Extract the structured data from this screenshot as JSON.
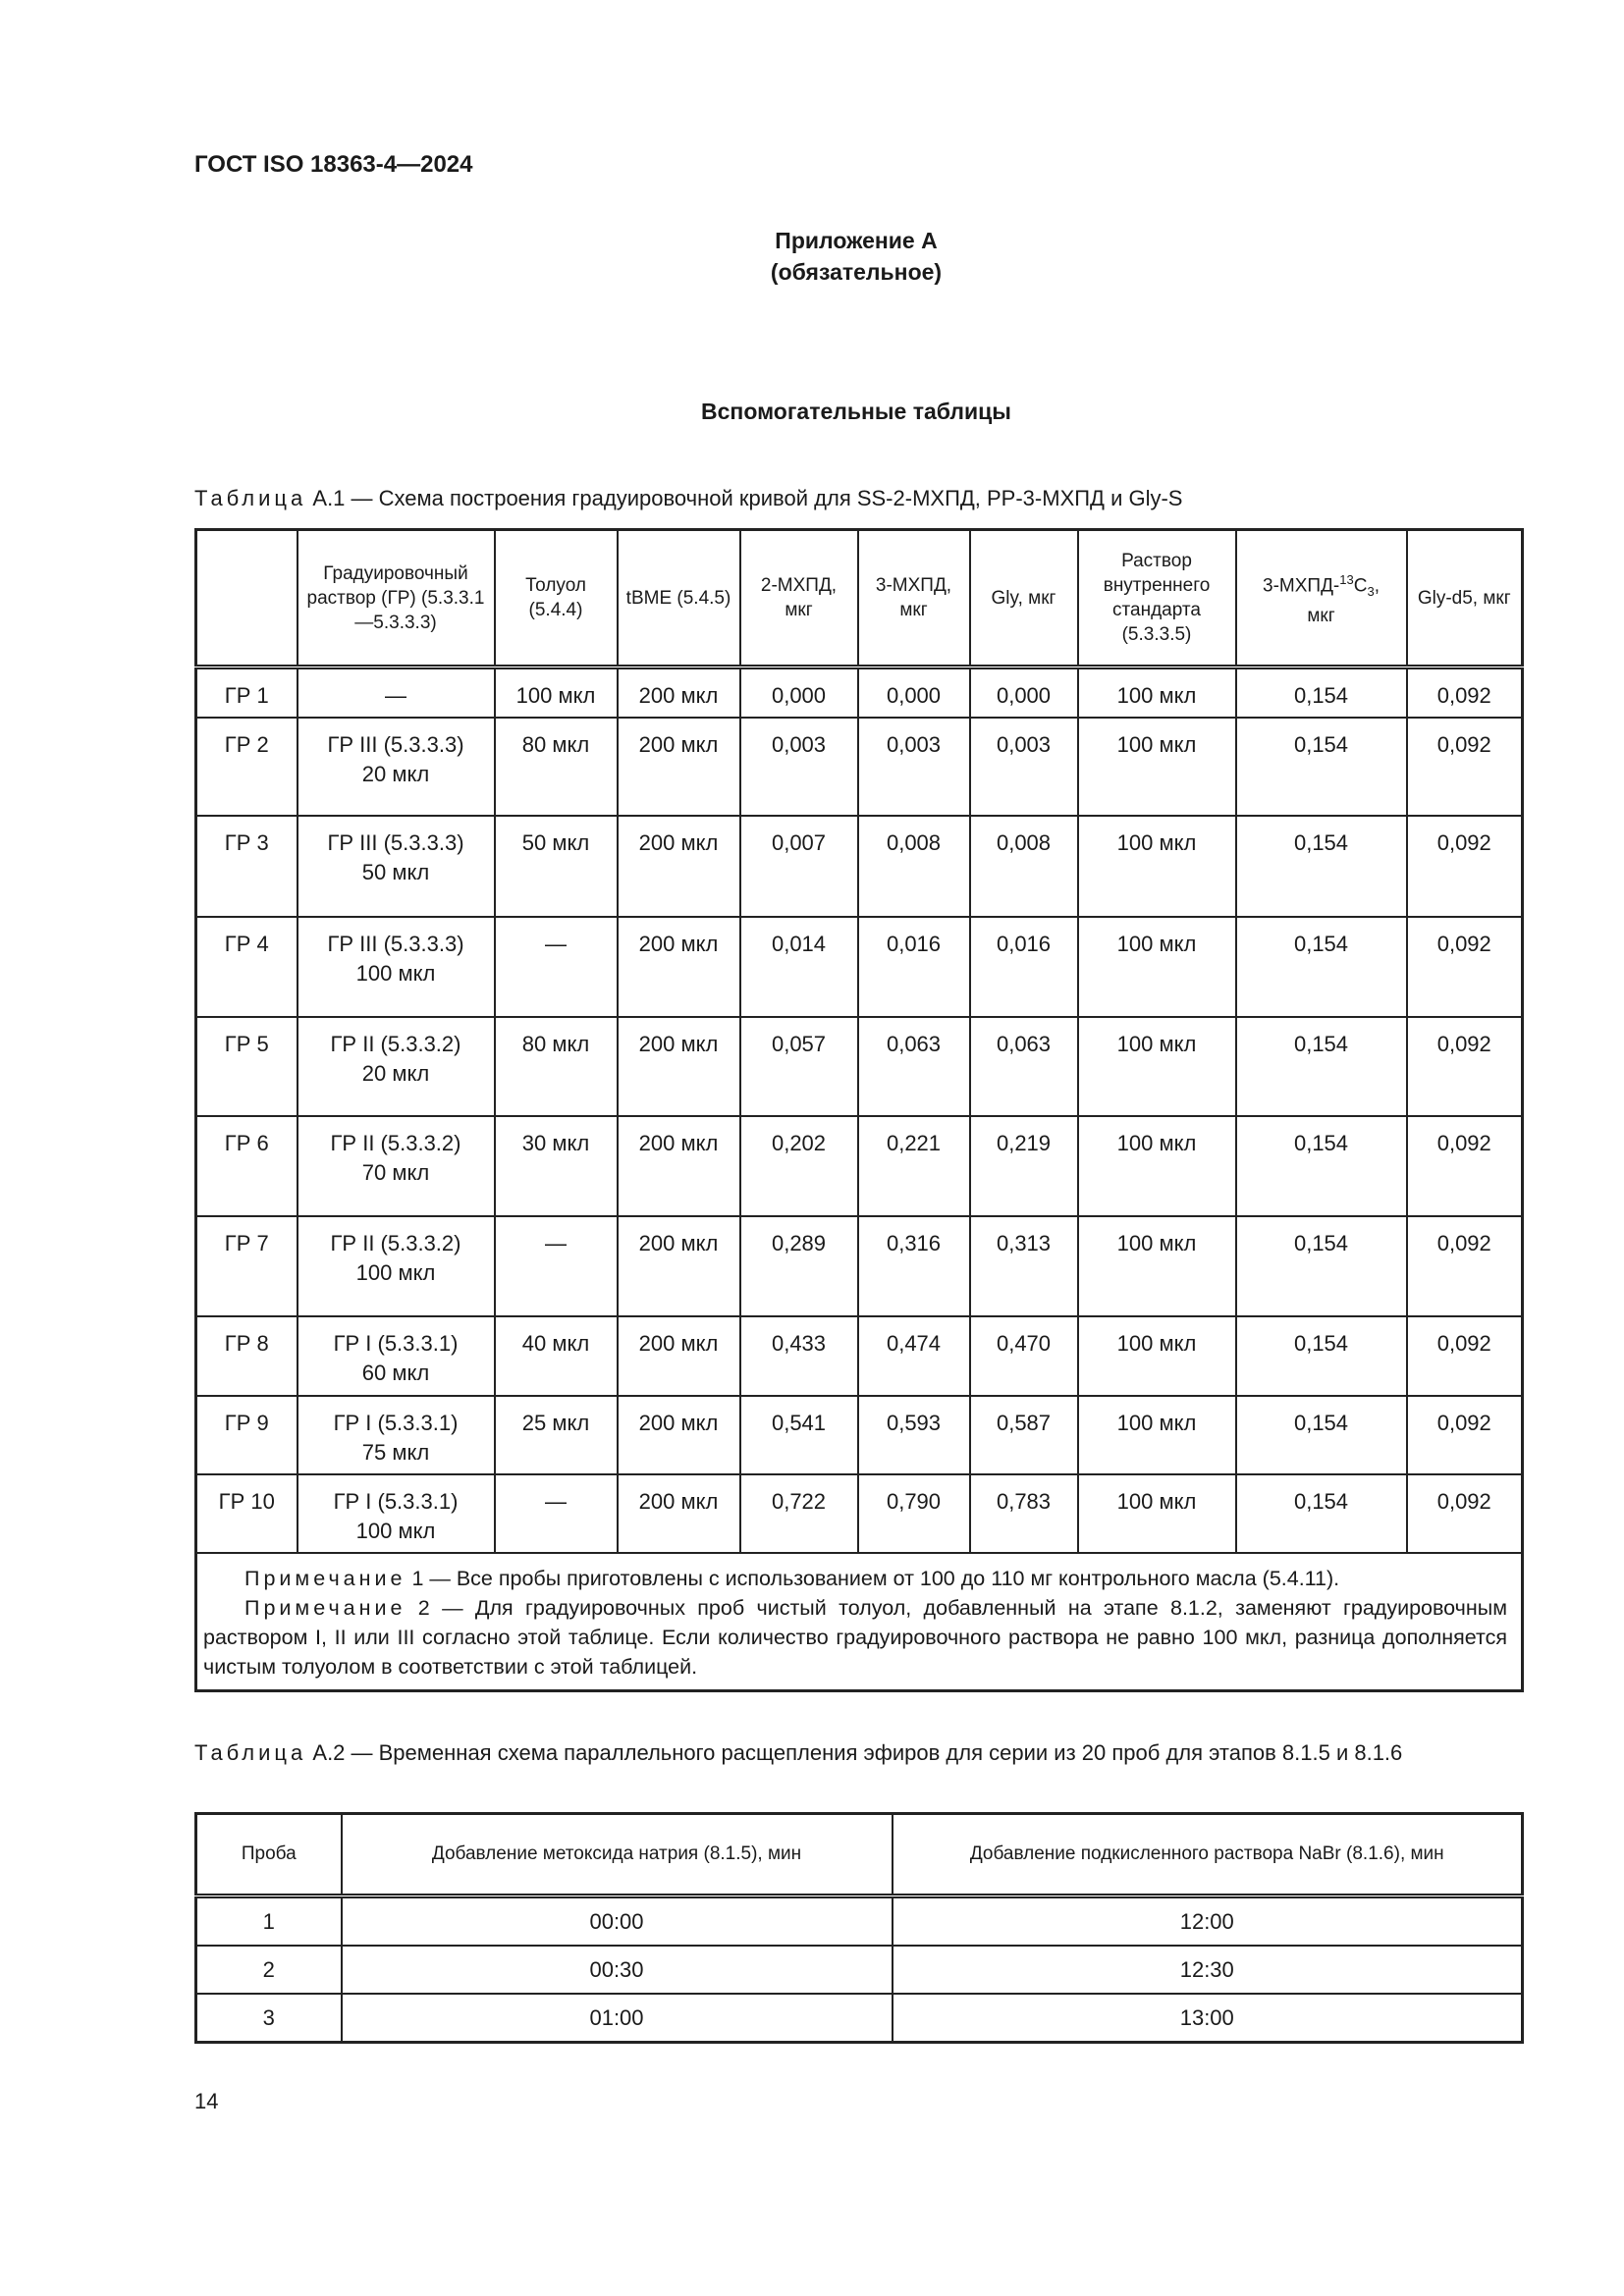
{
  "header": {
    "standard": "ГОСТ ISO 18363-4—2024"
  },
  "annex": {
    "title": "Приложение А",
    "status": "(обязательное)"
  },
  "section_title": "Вспомогательные таблицы",
  "table_a1": {
    "caption_prefix": "Таблица",
    "caption_text": "А.1 — Схема построения градуировочной кривой для SS-2-МХПД, РР-3-МХПД и Gly-S",
    "headers": [
      "",
      "Градуировочный раствор (ГР) (5.3.3.1—5.3.3.3)",
      "Толуол (5.4.4)",
      "tBME (5.4.5)",
      "2-МХПД, мкг",
      "3-МХПД, мкг",
      "Gly, мкг",
      "Раствор внутреннего стандарта (5.3.3.5)",
      "3-МХПД-",
      "Gly-d5, мкг"
    ],
    "header_iso": {
      "sup": "13",
      "base": "C",
      "sub": "3",
      "tail": ",",
      "unit": "мкг"
    },
    "rows": [
      [
        "ГР 1",
        "—",
        "100 мкл",
        "200 мкл",
        "0,000",
        "0,000",
        "0,000",
        "100 мкл",
        "0,154",
        "0,092"
      ],
      [
        "ГР 2",
        "ГР III (5.3.3.3)\n20 мкл",
        "80 мкл",
        "200 мкл",
        "0,003",
        "0,003",
        "0,003",
        "100 мкл",
        "0,154",
        "0,092"
      ],
      [
        "ГР 3",
        "ГР III (5.3.3.3)\n50 мкл",
        "50 мкл",
        "200 мкл",
        "0,007",
        "0,008",
        "0,008",
        "100 мкл",
        "0,154",
        "0,092"
      ],
      [
        "ГР 4",
        "ГР III (5.3.3.3)\n100 мкл",
        "—",
        "200 мкл",
        "0,014",
        "0,016",
        "0,016",
        "100 мкл",
        "0,154",
        "0,092"
      ],
      [
        "ГР 5",
        "ГР II (5.3.3.2)\n20 мкл",
        "80 мкл",
        "200 мкл",
        "0,057",
        "0,063",
        "0,063",
        "100 мкл",
        "0,154",
        "0,092"
      ],
      [
        "ГР 6",
        "ГР II (5.3.3.2)\n70 мкл",
        "30 мкл",
        "200 мкл",
        "0,202",
        "0,221",
        "0,219",
        "100 мкл",
        "0,154",
        "0,092"
      ],
      [
        "ГР 7",
        "ГР II (5.3.3.2)\n100 мкл",
        "—",
        "200 мкл",
        "0,289",
        "0,316",
        "0,313",
        "100 мкл",
        "0,154",
        "0,092"
      ],
      [
        "ГР 8",
        "ГР I (5.3.3.1)\n60 мкл",
        "40 мкл",
        "200 мкл",
        "0,433",
        "0,474",
        "0,470",
        "100 мкл",
        "0,154",
        "0,092"
      ],
      [
        "ГР 9",
        "ГР I (5.3.3.1)\n75 мкл",
        "25 мкл",
        "200 мкл",
        "0,541",
        "0,593",
        "0,587",
        "100 мкл",
        "0,154",
        "0,092"
      ],
      [
        "ГР 10",
        "ГР I (5.3.3.1)\n100 мкл",
        "—",
        "200 мкл",
        "0,722",
        "0,790",
        "0,783",
        "100 мкл",
        "0,154",
        "0,092"
      ]
    ],
    "notes": [
      {
        "label": "Примечание",
        "text": "1 — Все пробы приготовлены с использованием от 100 до 110 мг контрольного масла (5.4.11)."
      },
      {
        "label": "Примечание",
        "text": "2 — Для градуировочных проб чистый толуол, добавленный на этапе 8.1.2, заменяют градуировочным раствором I, II или III согласно этой таблице. Если количество градуировочного раствора не равно 100 мкл, разница дополняется чистым толуолом в соответствии с этой таблицей."
      }
    ]
  },
  "table_a2": {
    "caption_prefix": "Таблица",
    "caption_text": "А.2 — Временная схема параллельного расщепления эфиров для серии из 20 проб для этапов 8.1.5 и 8.1.6",
    "headers": [
      "Проба",
      "Добавление метоксида натрия (8.1.5), мин",
      "Добавление подкисленного раствора NaBr (8.1.6), мин"
    ],
    "rows": [
      [
        "1",
        "00:00",
        "12:00"
      ],
      [
        "2",
        "00:30",
        "12:30"
      ],
      [
        "3",
        "01:00",
        "13:00"
      ]
    ]
  },
  "page_number": "14"
}
